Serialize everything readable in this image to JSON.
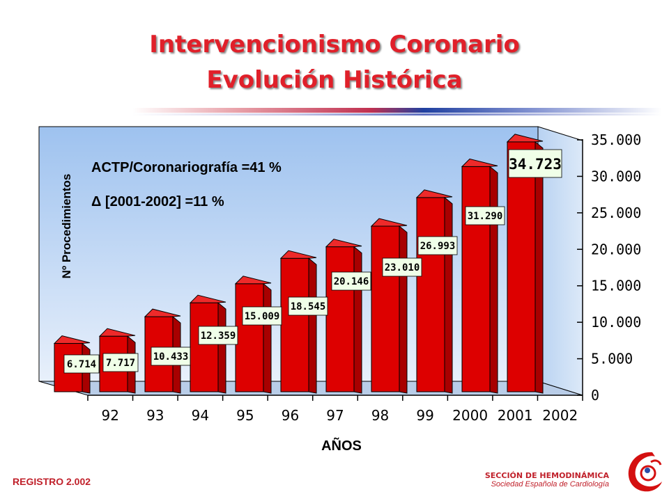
{
  "header": {
    "title_line1": "Intervencionismo Coronario",
    "title_line2": "Evolución Histórica"
  },
  "annotations": {
    "ratio": "ACTP/Coronariografía =41 %",
    "delta": "Δ [2001-2002] =11 %"
  },
  "footer": {
    "registry": "REGISTRO 2.002",
    "section": "SECCIÓN DE HEMODINÁMICA",
    "society": "Sociedad Española de Cardiología"
  },
  "colors": {
    "title": "#e0202a",
    "bar": "#dd0000",
    "label_bg": "#f0ffe8",
    "wall": "#a9c8ef"
  },
  "chart_data": {
    "type": "bar",
    "categories": [
      "92",
      "93",
      "94",
      "95",
      "96",
      "97",
      "98",
      "99",
      "2000",
      "2001",
      "2002"
    ],
    "values": [
      6714,
      7717,
      10433,
      12359,
      15009,
      18545,
      20146,
      23010,
      26993,
      31290,
      34723
    ],
    "value_labels": [
      "6.714",
      "7.717",
      "10.433",
      "12.359",
      "15.009",
      "18.545",
      "20.146",
      "23.010",
      "26.993",
      "31.290",
      "34.723"
    ],
    "ylabel": "Nº Procedimientos",
    "xlabel": "AÑOS",
    "ylim": [
      0,
      35000
    ],
    "yticks": [
      0,
      5000,
      10000,
      15000,
      20000,
      25000,
      30000,
      35000
    ],
    "ytick_labels": [
      "0",
      "5.000",
      "10.000",
      "15.000",
      "20.000",
      "25.000",
      "30.000",
      "35.000"
    ],
    "style": "3d-bar"
  }
}
